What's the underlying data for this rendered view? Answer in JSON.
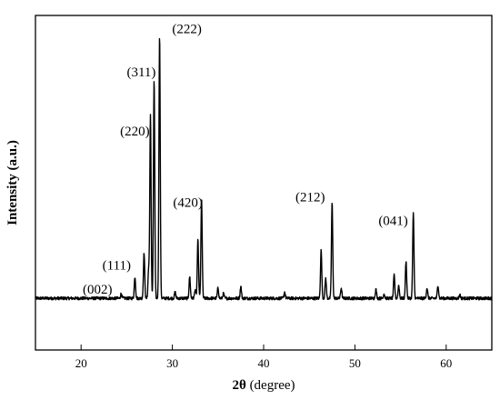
{
  "chart_data": {
    "type": "line",
    "title": "",
    "xlabel": "2θ (degree)",
    "xlabel_parts": {
      "symbol": "2θ",
      "unit": "(degree)"
    },
    "ylabel": "Intensity (a.u.)",
    "xlim": [
      15,
      65
    ],
    "ylim": [
      0,
      100
    ],
    "x_ticks": [
      20,
      30,
      40,
      50,
      60
    ],
    "y_ticks_labeled": false,
    "grid": false,
    "legend": "none",
    "line_color": "#000000",
    "baseline": 5.8,
    "series": [
      {
        "peaks": [
          {
            "x": 24.4,
            "y": 7.5
          },
          {
            "x": 25.9,
            "y": 13.5
          },
          {
            "x": 26.9,
            "y": 22.0
          },
          {
            "x": 27.4,
            "y": 16.0
          },
          {
            "x": 27.6,
            "y": 71.0
          },
          {
            "x": 28.0,
            "y": 84.0
          },
          {
            "x": 28.6,
            "y": 100.0
          },
          {
            "x": 30.3,
            "y": 8.0
          },
          {
            "x": 31.9,
            "y": 13.5
          },
          {
            "x": 32.5,
            "y": 9.0
          },
          {
            "x": 32.8,
            "y": 26.5
          },
          {
            "x": 33.2,
            "y": 41.0
          },
          {
            "x": 35.0,
            "y": 9.5
          },
          {
            "x": 35.6,
            "y": 7.5
          },
          {
            "x": 37.5,
            "y": 10.0
          },
          {
            "x": 42.3,
            "y": 8.0
          },
          {
            "x": 46.3,
            "y": 23.0
          },
          {
            "x": 46.8,
            "y": 13.0
          },
          {
            "x": 47.5,
            "y": 40.0
          },
          {
            "x": 48.5,
            "y": 9.5
          },
          {
            "x": 52.3,
            "y": 9.0
          },
          {
            "x": 53.2,
            "y": 7.5
          },
          {
            "x": 54.3,
            "y": 14.0
          },
          {
            "x": 54.8,
            "y": 10.5
          },
          {
            "x": 55.6,
            "y": 19.0
          },
          {
            "x": 56.4,
            "y": 36.0
          },
          {
            "x": 57.9,
            "y": 9.5
          },
          {
            "x": 59.1,
            "y": 10.5
          },
          {
            "x": 61.5,
            "y": 7.0
          }
        ]
      }
    ],
    "annotations": [
      {
        "text": "(002)",
        "x": 21.8,
        "y": 7.5
      },
      {
        "text": "(111)",
        "x": 23.9,
        "y": 16.0
      },
      {
        "text": "(220)",
        "x": 25.9,
        "y": 64.0
      },
      {
        "text": "(311)",
        "x": 26.6,
        "y": 85.0
      },
      {
        "text": "(222)",
        "x": 31.6,
        "y": 100.5
      },
      {
        "text": "(420)",
        "x": 31.7,
        "y": 38.5
      },
      {
        "text": "(212)",
        "x": 45.1,
        "y": 40.5
      },
      {
        "text": "(041)",
        "x": 54.2,
        "y": 32.0
      }
    ]
  }
}
